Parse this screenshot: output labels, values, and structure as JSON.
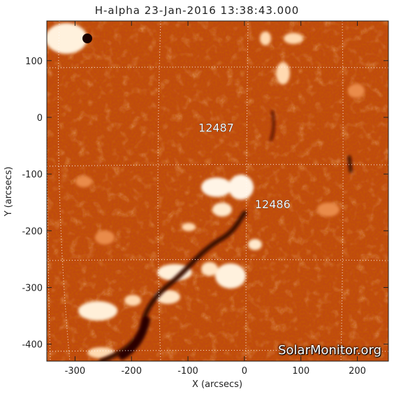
{
  "title": "H-alpha 23-Jan-2016 13:38:43.000",
  "xlabel": "X (arcsecs)",
  "ylabel": "Y (arcsecs)",
  "x_ticks": [
    "-300",
    "-200",
    "-100",
    "0",
    "100",
    "200"
  ],
  "y_ticks": [
    "100",
    "0",
    "-100",
    "-200",
    "-300",
    "-400"
  ],
  "x_range": [
    -350,
    255
  ],
  "y_range": [
    -430,
    170
  ],
  "active_regions": [
    {
      "number": "12487",
      "x": -50,
      "y": -25
    },
    {
      "number": "12486",
      "x": 50,
      "y": -160
    }
  ],
  "watermark": "SolarMonitor.org",
  "colors": {
    "background_dark": "#8a1c00",
    "background_mid": "#c8480c",
    "bright": "#ffd9a8",
    "plage": "#fff3e0",
    "filament": "#3a0700"
  }
}
